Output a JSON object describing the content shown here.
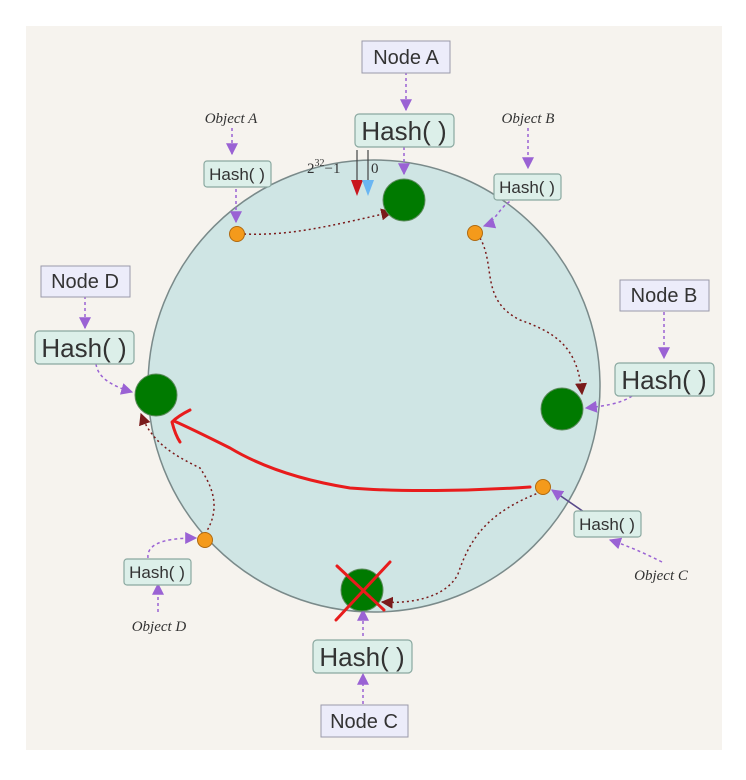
{
  "colors": {
    "background": "#f6f3ee",
    "ring_fill": "#cfe5e4",
    "ring_stroke": "#7a8a8a",
    "node_fill": "#007a00",
    "object_fill": "#f49a1b",
    "node_box_fill": "#ececfa",
    "hash_box_fill": "#dcefe9",
    "pointer_arrow": "#9a62d4",
    "path_line": "#7a1a1a",
    "annotation": "#e81c1c"
  },
  "ring": {
    "max_label_base": "2",
    "max_label_exp": "32",
    "max_label_suffix": "−1",
    "zero_label": "0"
  },
  "nodes": [
    {
      "id": "a",
      "label": "Node A",
      "hash_label": "Hash( )",
      "removed": false
    },
    {
      "id": "b",
      "label": "Node B",
      "hash_label": "Hash( )",
      "removed": false
    },
    {
      "id": "c",
      "label": "Node C",
      "hash_label": "Hash( )",
      "removed": true
    },
    {
      "id": "d",
      "label": "Node D",
      "hash_label": "Hash( )",
      "removed": false
    }
  ],
  "objects": [
    {
      "id": "a",
      "label": "Object A",
      "hash_label": "Hash( )"
    },
    {
      "id": "b",
      "label": "Object B",
      "hash_label": "Hash( )"
    },
    {
      "id": "c",
      "label": "Object C",
      "hash_label": "Hash( )"
    },
    {
      "id": "d",
      "label": "Object D",
      "hash_label": "Hash( )"
    }
  ]
}
